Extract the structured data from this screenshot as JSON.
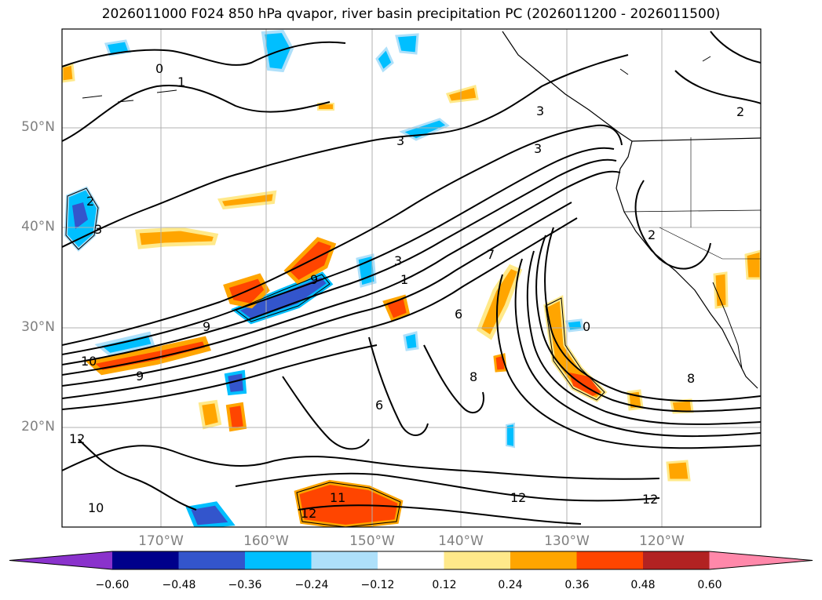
{
  "title": "2026011000 F024 850 hPa qvapor, river basin precipitation PC (2026011200 - 2026011500)",
  "latitude_labels": [
    "50°N",
    "40°N",
    "30°N",
    "20°N"
  ],
  "longitude_labels": [
    "170°W",
    "160°W",
    "150°W",
    "140°W",
    "130°W",
    "120°W"
  ],
  "colorbar": {
    "ticks": [
      "−0.60",
      "−0.48",
      "−0.36",
      "−0.24",
      "−0.12",
      "0.12",
      "0.24",
      "0.36",
      "0.48",
      "0.60"
    ],
    "colors": [
      "#8a32cc",
      "#00008b",
      "#3355cc",
      "#00bfff",
      "#aee0fa",
      "#ffffff",
      "#ffe98a",
      "#ffa500",
      "#ff4500",
      "#b22222",
      "#ff88aa"
    ]
  },
  "contour_labels": [
    "0",
    "1",
    "2",
    "3",
    "3",
    "3",
    "3",
    "2",
    "2",
    "3",
    "6",
    "6",
    "7",
    "8",
    "9",
    "9",
    "9",
    "10",
    "10",
    "11",
    "12",
    "12",
    "12",
    "12",
    "0",
    "1",
    "8"
  ]
}
